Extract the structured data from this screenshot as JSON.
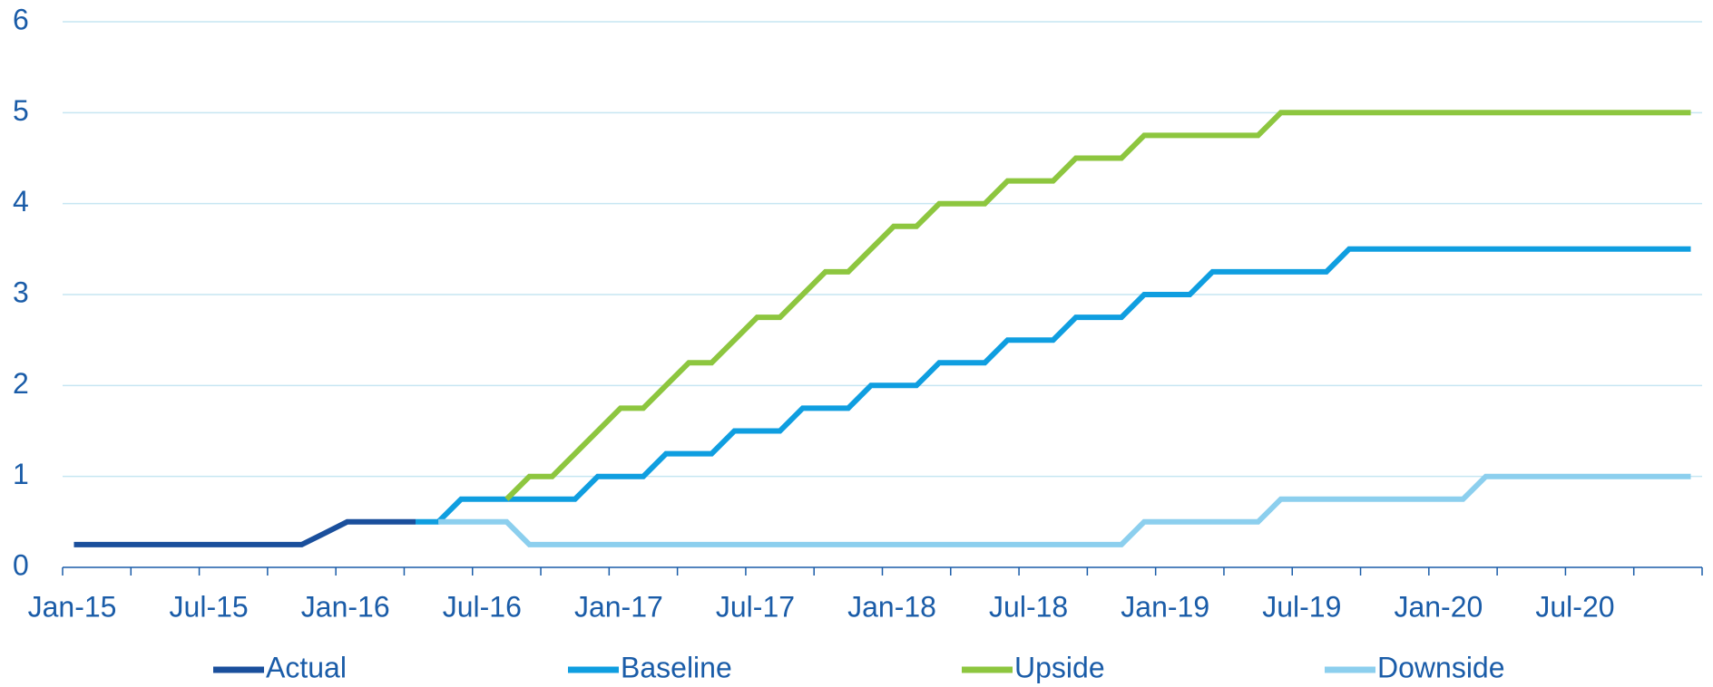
{
  "chart_data": {
    "type": "line",
    "categories": [
      "Jan-15",
      null,
      null,
      null,
      null,
      null,
      "Jul-15",
      null,
      null,
      null,
      null,
      null,
      "Jan-16",
      null,
      null,
      null,
      null,
      null,
      "Jul-16",
      null,
      null,
      null,
      null,
      null,
      "Jan-17",
      null,
      null,
      null,
      null,
      null,
      "Jul-17",
      null,
      null,
      null,
      null,
      null,
      "Jan-18",
      null,
      null,
      null,
      null,
      null,
      "Jul-18",
      null,
      null,
      null,
      null,
      null,
      "Jan-19",
      null,
      null,
      null,
      null,
      null,
      "Jul-19",
      null,
      null,
      null,
      null,
      null,
      "Jan-20",
      null,
      null,
      null,
      null,
      null,
      "Jul-20",
      null,
      null,
      null,
      null,
      null
    ],
    "series": [
      {
        "name": "Actual",
        "color": "#1a4f9c",
        "values": [
          0.25,
          0.25,
          0.25,
          0.25,
          0.25,
          0.25,
          0.25,
          0.25,
          0.25,
          0.25,
          0.25,
          0.375,
          0.5,
          0.5,
          0.5,
          0.5,
          null,
          null,
          null,
          null,
          null,
          null,
          null,
          null,
          null,
          null,
          null,
          null,
          null,
          null,
          null,
          null,
          null,
          null,
          null,
          null,
          null,
          null,
          null,
          null,
          null,
          null,
          null,
          null,
          null,
          null,
          null,
          null,
          null,
          null,
          null,
          null,
          null,
          null,
          null,
          null,
          null,
          null,
          null,
          null,
          null,
          null,
          null,
          null,
          null,
          null,
          null,
          null,
          null,
          null,
          null,
          null
        ]
      },
      {
        "name": "Baseline",
        "color": "#0f9ee0",
        "values": [
          null,
          null,
          null,
          null,
          null,
          null,
          null,
          null,
          null,
          null,
          null,
          null,
          null,
          null,
          null,
          0.5,
          0.5,
          0.75,
          0.75,
          0.75,
          0.75,
          0.75,
          0.75,
          1,
          1,
          1,
          1.25,
          1.25,
          1.25,
          1.5,
          1.5,
          1.5,
          1.75,
          1.75,
          1.75,
          2,
          2,
          2,
          2.25,
          2.25,
          2.25,
          2.5,
          2.5,
          2.5,
          2.75,
          2.75,
          2.75,
          3,
          3,
          3,
          3.25,
          3.25,
          3.25,
          3.25,
          3.25,
          3.25,
          3.5,
          3.5,
          3.5,
          3.5,
          3.5,
          3.5,
          3.5,
          3.5,
          3.5,
          3.5,
          3.5,
          3.5,
          3.5,
          3.5,
          3.5,
          3.5
        ]
      },
      {
        "name": "Upside",
        "color": "#8dc63f",
        "values": [
          null,
          null,
          null,
          null,
          null,
          null,
          null,
          null,
          null,
          null,
          null,
          null,
          null,
          null,
          null,
          null,
          null,
          null,
          null,
          0.75,
          1,
          1,
          1.25,
          1.5,
          1.75,
          1.75,
          2,
          2.25,
          2.25,
          2.5,
          2.75,
          2.75,
          3,
          3.25,
          3.25,
          3.5,
          3.75,
          3.75,
          4,
          4,
          4,
          4.25,
          4.25,
          4.25,
          4.5,
          4.5,
          4.5,
          4.75,
          4.75,
          4.75,
          4.75,
          4.75,
          4.75,
          5,
          5,
          5,
          5,
          5,
          5,
          5,
          5,
          5,
          5,
          5,
          5,
          5,
          5,
          5,
          5,
          5,
          5,
          5
        ]
      },
      {
        "name": "Downside",
        "color": "#8ccfee",
        "values": [
          null,
          null,
          null,
          null,
          null,
          null,
          null,
          null,
          null,
          null,
          null,
          null,
          null,
          null,
          null,
          null,
          0.5,
          0.5,
          0.5,
          0.5,
          0.25,
          0.25,
          0.25,
          0.25,
          0.25,
          0.25,
          0.25,
          0.25,
          0.25,
          0.25,
          0.25,
          0.25,
          0.25,
          0.25,
          0.25,
          0.25,
          0.25,
          0.25,
          0.25,
          0.25,
          0.25,
          0.25,
          0.25,
          0.25,
          0.25,
          0.25,
          0.25,
          0.5,
          0.5,
          0.5,
          0.5,
          0.5,
          0.5,
          0.75,
          0.75,
          0.75,
          0.75,
          0.75,
          0.75,
          0.75,
          0.75,
          0.75,
          1,
          1,
          1,
          1,
          1,
          1,
          1,
          1,
          1,
          1
        ]
      }
    ],
    "ylim": [
      0,
      6
    ],
    "yticks": [
      0,
      1,
      2,
      3,
      4,
      5,
      6
    ],
    "grid": true,
    "legend": "bottom"
  }
}
